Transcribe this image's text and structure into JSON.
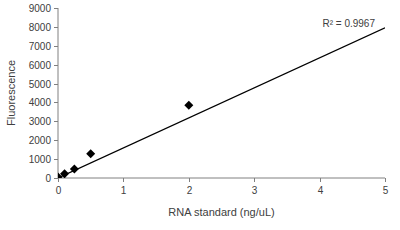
{
  "chart_data": {
    "type": "scatter",
    "x_label": "RNA standard (ng/uL)",
    "y_label": "Fluorescence",
    "annotation": "R² = 0.9967",
    "xlim": [
      0,
      5
    ],
    "xticks": [
      0,
      1,
      2,
      3,
      4,
      5
    ],
    "ylim": [
      0,
      9000
    ],
    "yticks": [
      0,
      1000,
      2000,
      3000,
      4000,
      5000,
      6000,
      7000,
      8000,
      9000
    ],
    "grid": false,
    "series": [
      {
        "type": "scatter",
        "marker": "diamond",
        "color": "#000000",
        "x": [
          0,
          0.1,
          0.25,
          0.5,
          2
        ],
        "values": [
          50,
          220,
          480,
          1280,
          3850
        ]
      },
      {
        "type": "line",
        "line_style": "solid",
        "color": "#000000",
        "x": [
          0,
          5
        ],
        "values": [
          0,
          7950
        ]
      }
    ]
  }
}
